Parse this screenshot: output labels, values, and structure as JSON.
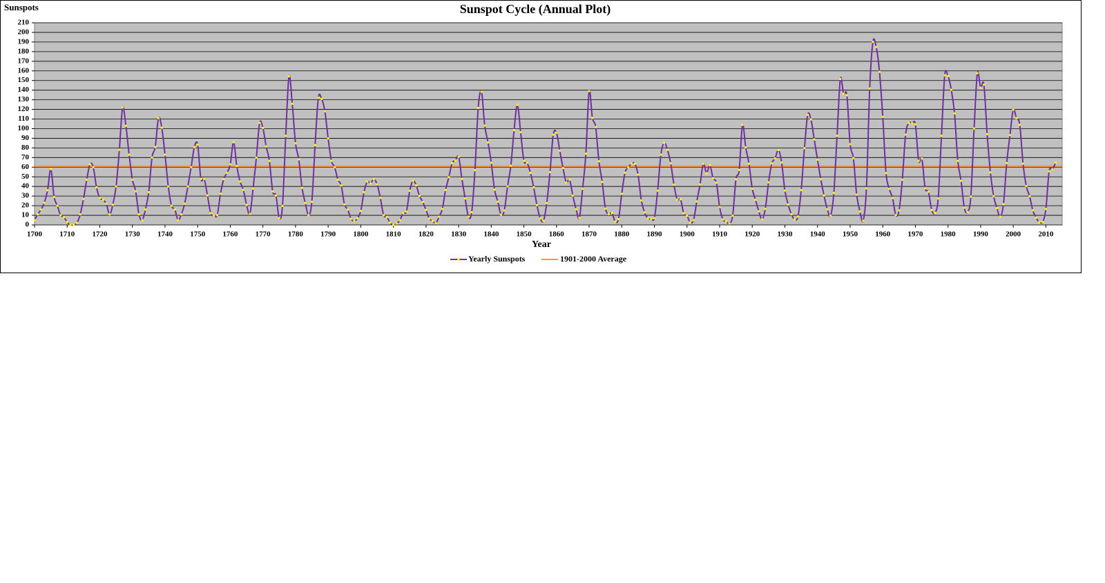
{
  "chart_data": {
    "type": "line",
    "title": "Sunspot Cycle (Annual Plot)",
    "y_label": "Sunspots",
    "x_label": "Year",
    "x": [
      1700,
      1701,
      1702,
      1703,
      1704,
      1705,
      1706,
      1707,
      1708,
      1709,
      1710,
      1711,
      1712,
      1713,
      1714,
      1715,
      1716,
      1717,
      1718,
      1719,
      1720,
      1721,
      1722,
      1723,
      1724,
      1725,
      1726,
      1727,
      1728,
      1729,
      1730,
      1731,
      1732,
      1733,
      1734,
      1735,
      1736,
      1737,
      1738,
      1739,
      1740,
      1741,
      1742,
      1743,
      1744,
      1745,
      1746,
      1747,
      1748,
      1749,
      1750,
      1751,
      1752,
      1753,
      1754,
      1755,
      1756,
      1757,
      1758,
      1759,
      1760,
      1761,
      1762,
      1763,
      1764,
      1765,
      1766,
      1767,
      1768,
      1769,
      1770,
      1771,
      1772,
      1773,
      1774,
      1775,
      1776,
      1777,
      1778,
      1779,
      1780,
      1781,
      1782,
      1783,
      1784,
      1785,
      1786,
      1787,
      1788,
      1789,
      1790,
      1791,
      1792,
      1793,
      1794,
      1795,
      1796,
      1797,
      1798,
      1799,
      1800,
      1801,
      1802,
      1803,
      1804,
      1805,
      1806,
      1807,
      1808,
      1809,
      1810,
      1811,
      1812,
      1813,
      1814,
      1815,
      1816,
      1817,
      1818,
      1819,
      1820,
      1821,
      1822,
      1823,
      1824,
      1825,
      1826,
      1827,
      1828,
      1829,
      1830,
      1831,
      1832,
      1833,
      1834,
      1835,
      1836,
      1837,
      1838,
      1839,
      1840,
      1841,
      1842,
      1843,
      1844,
      1845,
      1846,
      1847,
      1848,
      1849,
      1850,
      1851,
      1852,
      1853,
      1854,
      1855,
      1856,
      1857,
      1858,
      1859,
      1860,
      1861,
      1862,
      1863,
      1864,
      1865,
      1866,
      1867,
      1868,
      1869,
      1870,
      1871,
      1872,
      1873,
      1874,
      1875,
      1876,
      1877,
      1878,
      1879,
      1880,
      1881,
      1882,
      1883,
      1884,
      1885,
      1886,
      1887,
      1888,
      1889,
      1890,
      1891,
      1892,
      1893,
      1894,
      1895,
      1896,
      1897,
      1898,
      1899,
      1900,
      1901,
      1902,
      1903,
      1904,
      1905,
      1906,
      1907,
      1908,
      1909,
      1910,
      1911,
      1912,
      1913,
      1914,
      1915,
      1916,
      1917,
      1918,
      1919,
      1920,
      1921,
      1922,
      1923,
      1924,
      1925,
      1926,
      1927,
      1928,
      1929,
      1930,
      1931,
      1932,
      1933,
      1934,
      1935,
      1936,
      1937,
      1938,
      1939,
      1940,
      1941,
      1942,
      1943,
      1944,
      1945,
      1946,
      1947,
      1948,
      1949,
      1950,
      1951,
      1952,
      1953,
      1954,
      1955,
      1956,
      1957,
      1958,
      1959,
      1960,
      1961,
      1962,
      1963,
      1964,
      1965,
      1966,
      1967,
      1968,
      1969,
      1970,
      1971,
      1972,
      1973,
      1974,
      1975,
      1976,
      1977,
      1978,
      1979,
      1980,
      1981,
      1982,
      1983,
      1984,
      1985,
      1986,
      1987,
      1988,
      1989,
      1990,
      1991,
      1992,
      1993,
      1994,
      1995,
      1996,
      1997,
      1998,
      1999,
      2000,
      2001,
      2002,
      2003,
      2004,
      2005,
      2006,
      2007,
      2008,
      2009,
      2010,
      2011,
      2012,
      2013
    ],
    "series": [
      {
        "name": "Yearly Sunspots",
        "color": "#7030a0",
        "marker_color": "#ffff00",
        "values": [
          5,
          11,
          16,
          23,
          36,
          58,
          29,
          20,
          10,
          8,
          3,
          0,
          0,
          2,
          11,
          27,
          47,
          63,
          60,
          39,
          28,
          26,
          22,
          11,
          21,
          40,
          78,
          122,
          103,
          73,
          47,
          35,
          11,
          5,
          16,
          34,
          70,
          81,
          111,
          101,
          73,
          40,
          20,
          16,
          5,
          11,
          22,
          40,
          60,
          80.9,
          83.4,
          47.7,
          47.8,
          30.7,
          12.2,
          9.6,
          10.2,
          32.4,
          47.6,
          54,
          62.9,
          85.9,
          61.2,
          45.1,
          36.4,
          20.9,
          11.4,
          37.8,
          69.8,
          106.1,
          100.8,
          81.6,
          66.5,
          34.8,
          30.6,
          7,
          19.8,
          92.5,
          154.4,
          125.9,
          84.8,
          68.1,
          38.5,
          22.8,
          10.2,
          24.1,
          82.9,
          132,
          130.9,
          118.1,
          89.9,
          66.6,
          60,
          46.9,
          41,
          21.3,
          16,
          6.4,
          4.1,
          6.8,
          14.5,
          34,
          45,
          43.1,
          47.5,
          42.2,
          28.1,
          10.1,
          8.1,
          2.5,
          0,
          1.4,
          5,
          12.2,
          13.9,
          35.4,
          45.8,
          41.1,
          30.1,
          23.9,
          15.6,
          6.6,
          4,
          1.8,
          8.5,
          16.6,
          36.3,
          49.6,
          64.2,
          67,
          70.9,
          47.8,
          27.5,
          8.5,
          13.2,
          56.9,
          121.5,
          138.3,
          103.2,
          85.7,
          64.6,
          36.7,
          24.2,
          10.7,
          15,
          40.1,
          61.5,
          98.5,
          124.7,
          96.3,
          66.6,
          64.5,
          54.1,
          39,
          20.6,
          6.7,
          4.3,
          22.7,
          54.8,
          93.8,
          95.8,
          77.2,
          59.1,
          44,
          47,
          30.5,
          16.3,
          7.3,
          37.6,
          74,
          139,
          111.2,
          101.6,
          66.2,
          44.7,
          17,
          11.3,
          12.4,
          3.4,
          6,
          32.3,
          54.3,
          59.7,
          63.7,
          63.5,
          52.2,
          25.4,
          13.1,
          6.8,
          6.3,
          7.1,
          35.6,
          73,
          85.1,
          78,
          64,
          41.8,
          26.2,
          26.7,
          12.1,
          9.5,
          2.7,
          5,
          24.4,
          42,
          63.5,
          53.8,
          62,
          48.5,
          43.9,
          18.6,
          5.7,
          3.6,
          1.4,
          9.6,
          47.4,
          57.1,
          103.9,
          80.6,
          63.6,
          37.6,
          26.1,
          14.2,
          5.8,
          16.7,
          44.3,
          63.9,
          69,
          77.8,
          64.9,
          35.7,
          21.2,
          11.1,
          5.7,
          8.7,
          36.1,
          79.7,
          114.4,
          109.6,
          88.8,
          67.8,
          47.5,
          30.6,
          16.3,
          9.6,
          33.2,
          92.6,
          151.6,
          136.3,
          134.7,
          83.9,
          69.4,
          31.5,
          13.9,
          4.4,
          38,
          141.7,
          190.2,
          184.8,
          159,
          112.3,
          53.9,
          37.5,
          27.9,
          10.2,
          15.1,
          47,
          93.8,
          105.9,
          105.5,
          104.5,
          66.6,
          68.9,
          38,
          34.5,
          15.5,
          12.6,
          27.5,
          92.5,
          155.4,
          154.6,
          140.4,
          115.9,
          66.6,
          45.9,
          17.9,
          13.4,
          29.4,
          100.2,
          157.6,
          142.6,
          145.7,
          94.3,
          54.6,
          29.9,
          17.5,
          8.6,
          21.5,
          64.3,
          93.3,
          119.6,
          111,
          104,
          63.7,
          40.4,
          29.8,
          15.2,
          7.5,
          2.9,
          3.1,
          16.5,
          55.7,
          57.6,
          64.7
        ]
      }
    ],
    "reference_line": {
      "name": "1901-2000 Average",
      "color": "#f79646",
      "value": 61
    },
    "xlim": [
      1700,
      2015
    ],
    "xticks": [
      1700,
      1710,
      1720,
      1730,
      1740,
      1750,
      1760,
      1770,
      1780,
      1790,
      1800,
      1810,
      1820,
      1830,
      1840,
      1850,
      1860,
      1870,
      1880,
      1890,
      1900,
      1910,
      1920,
      1930,
      1940,
      1950,
      1960,
      1970,
      1980,
      1990,
      2000,
      2010
    ],
    "ylim": [
      0,
      210
    ],
    "yticks": [
      0,
      10,
      20,
      30,
      40,
      50,
      60,
      70,
      80,
      90,
      100,
      110,
      120,
      130,
      140,
      150,
      160,
      170,
      180,
      190,
      200,
      210
    ],
    "grid": true,
    "legend": "bottom"
  }
}
